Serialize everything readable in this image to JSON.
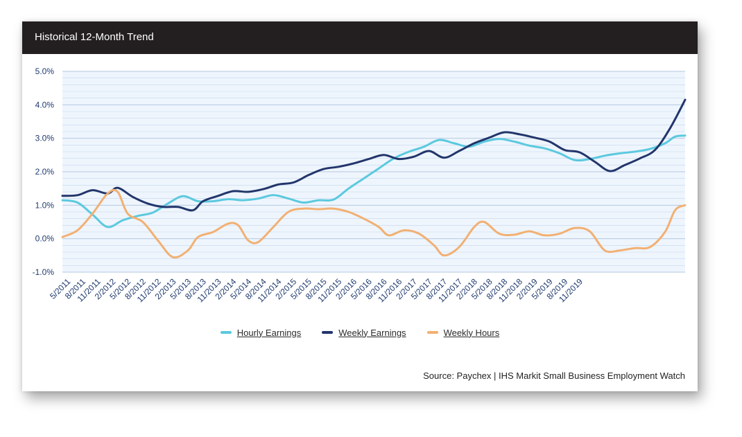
{
  "header": {
    "title": "Historical 12-Month Trend"
  },
  "source": "Source: Paychex | IHS Markit Small Business Employment Watch",
  "colors": {
    "hourly": "#5bc9de",
    "weekly": "#22356b",
    "hours": "#f2b072",
    "grid": "#c5d7ec",
    "plot_bg": "#eef5fd",
    "axis_text": "#1f3a6e"
  },
  "chart_data": {
    "type": "line",
    "title": "Historical 12-Month Trend",
    "ylim": [
      -1.0,
      5.0
    ],
    "yticks": [
      "5.0%",
      "4.0%",
      "3.0%",
      "2.0%",
      "1.0%",
      "0.0%",
      "-1.0%"
    ],
    "x_tick_labels": [
      "5/2011",
      "8/2011",
      "11/2011",
      "2/2012",
      "5/2012",
      "8/2012",
      "11/2012",
      "2/2013",
      "5/2013",
      "8/2013",
      "11/2013",
      "2/2014",
      "5/2014",
      "8/2014",
      "11/2014",
      "2/2015",
      "5/2015",
      "8/2015",
      "11/2015",
      "2/2016",
      "5/2016",
      "8/2016",
      "11/2016",
      "2/2017",
      "5/2017",
      "8/2017",
      "11/2017",
      "2/2018",
      "5/2018",
      "8/2018",
      "11/2018",
      "2/2019",
      "5/2019",
      "8/2019",
      "11/2019"
    ],
    "x_start": "2011-05",
    "x_end": "2019-12",
    "legend": "bottom",
    "grid": true,
    "series": [
      {
        "name": "Hourly Earnings",
        "key": "hourly",
        "points": [
          [
            0,
            1.15
          ],
          [
            3,
            1.08
          ],
          [
            6,
            0.72
          ],
          [
            9,
            0.35
          ],
          [
            12,
            0.55
          ],
          [
            15,
            0.68
          ],
          [
            18,
            0.78
          ],
          [
            21,
            1.05
          ],
          [
            24,
            1.27
          ],
          [
            27,
            1.12
          ],
          [
            30,
            1.12
          ],
          [
            33,
            1.18
          ],
          [
            36,
            1.15
          ],
          [
            39,
            1.2
          ],
          [
            42,
            1.3
          ],
          [
            45,
            1.2
          ],
          [
            48,
            1.08
          ],
          [
            51,
            1.15
          ],
          [
            54,
            1.17
          ],
          [
            57,
            1.5
          ],
          [
            60,
            1.8
          ],
          [
            63,
            2.1
          ],
          [
            66,
            2.4
          ],
          [
            69,
            2.6
          ],
          [
            72,
            2.75
          ],
          [
            75,
            2.95
          ],
          [
            78,
            2.85
          ],
          [
            81,
            2.75
          ],
          [
            84,
            2.9
          ],
          [
            87,
            2.98
          ],
          [
            90,
            2.9
          ],
          [
            93,
            2.78
          ],
          [
            96,
            2.7
          ],
          [
            99,
            2.55
          ],
          [
            102,
            2.35
          ],
          [
            105,
            2.38
          ],
          [
            108,
            2.48
          ],
          [
            111,
            2.55
          ],
          [
            114,
            2.6
          ],
          [
            117,
            2.68
          ],
          [
            120,
            2.85
          ],
          [
            122,
            3.05
          ],
          [
            124,
            3.08
          ]
        ]
      },
      {
        "name": "Weekly Earnings",
        "key": "weekly",
        "points": [
          [
            0,
            1.28
          ],
          [
            3,
            1.3
          ],
          [
            6,
            1.45
          ],
          [
            9,
            1.35
          ],
          [
            11,
            1.52
          ],
          [
            14,
            1.25
          ],
          [
            17,
            1.05
          ],
          [
            20,
            0.95
          ],
          [
            23,
            0.95
          ],
          [
            26,
            0.85
          ],
          [
            28,
            1.12
          ],
          [
            31,
            1.28
          ],
          [
            34,
            1.42
          ],
          [
            37,
            1.4
          ],
          [
            40,
            1.48
          ],
          [
            43,
            1.62
          ],
          [
            46,
            1.68
          ],
          [
            49,
            1.9
          ],
          [
            52,
            2.08
          ],
          [
            55,
            2.15
          ],
          [
            58,
            2.25
          ],
          [
            61,
            2.38
          ],
          [
            64,
            2.5
          ],
          [
            67,
            2.38
          ],
          [
            70,
            2.45
          ],
          [
            73,
            2.62
          ],
          [
            76,
            2.42
          ],
          [
            79,
            2.62
          ],
          [
            82,
            2.85
          ],
          [
            85,
            3.02
          ],
          [
            88,
            3.18
          ],
          [
            91,
            3.12
          ],
          [
            94,
            3.02
          ],
          [
            97,
            2.9
          ],
          [
            100,
            2.65
          ],
          [
            103,
            2.58
          ],
          [
            106,
            2.3
          ],
          [
            109,
            2.02
          ],
          [
            112,
            2.2
          ],
          [
            115,
            2.4
          ],
          [
            118,
            2.65
          ],
          [
            121,
            3.3
          ],
          [
            124,
            4.15
          ]
        ]
      },
      {
        "name": "Weekly Hours",
        "key": "hours",
        "points": [
          [
            0,
            0.05
          ],
          [
            3,
            0.25
          ],
          [
            6,
            0.75
          ],
          [
            9,
            1.35
          ],
          [
            11,
            1.4
          ],
          [
            13,
            0.75
          ],
          [
            16,
            0.5
          ],
          [
            19,
            -0.05
          ],
          [
            22,
            -0.55
          ],
          [
            25,
            -0.35
          ],
          [
            27,
            0.05
          ],
          [
            30,
            0.2
          ],
          [
            33,
            0.45
          ],
          [
            35,
            0.4
          ],
          [
            37,
            -0.05
          ],
          [
            39,
            -0.1
          ],
          [
            42,
            0.35
          ],
          [
            45,
            0.8
          ],
          [
            48,
            0.9
          ],
          [
            51,
            0.88
          ],
          [
            54,
            0.9
          ],
          [
            57,
            0.8
          ],
          [
            60,
            0.6
          ],
          [
            63,
            0.35
          ],
          [
            65,
            0.1
          ],
          [
            68,
            0.25
          ],
          [
            71,
            0.15
          ],
          [
            74,
            -0.2
          ],
          [
            76,
            -0.5
          ],
          [
            79,
            -0.25
          ],
          [
            82,
            0.35
          ],
          [
            84,
            0.5
          ],
          [
            87,
            0.15
          ],
          [
            90,
            0.12
          ],
          [
            93,
            0.22
          ],
          [
            96,
            0.1
          ],
          [
            99,
            0.15
          ],
          [
            102,
            0.32
          ],
          [
            105,
            0.22
          ],
          [
            108,
            -0.35
          ],
          [
            111,
            -0.35
          ],
          [
            114,
            -0.28
          ],
          [
            117,
            -0.25
          ],
          [
            120,
            0.2
          ],
          [
            122,
            0.85
          ],
          [
            124,
            1.0
          ]
        ]
      }
    ]
  }
}
